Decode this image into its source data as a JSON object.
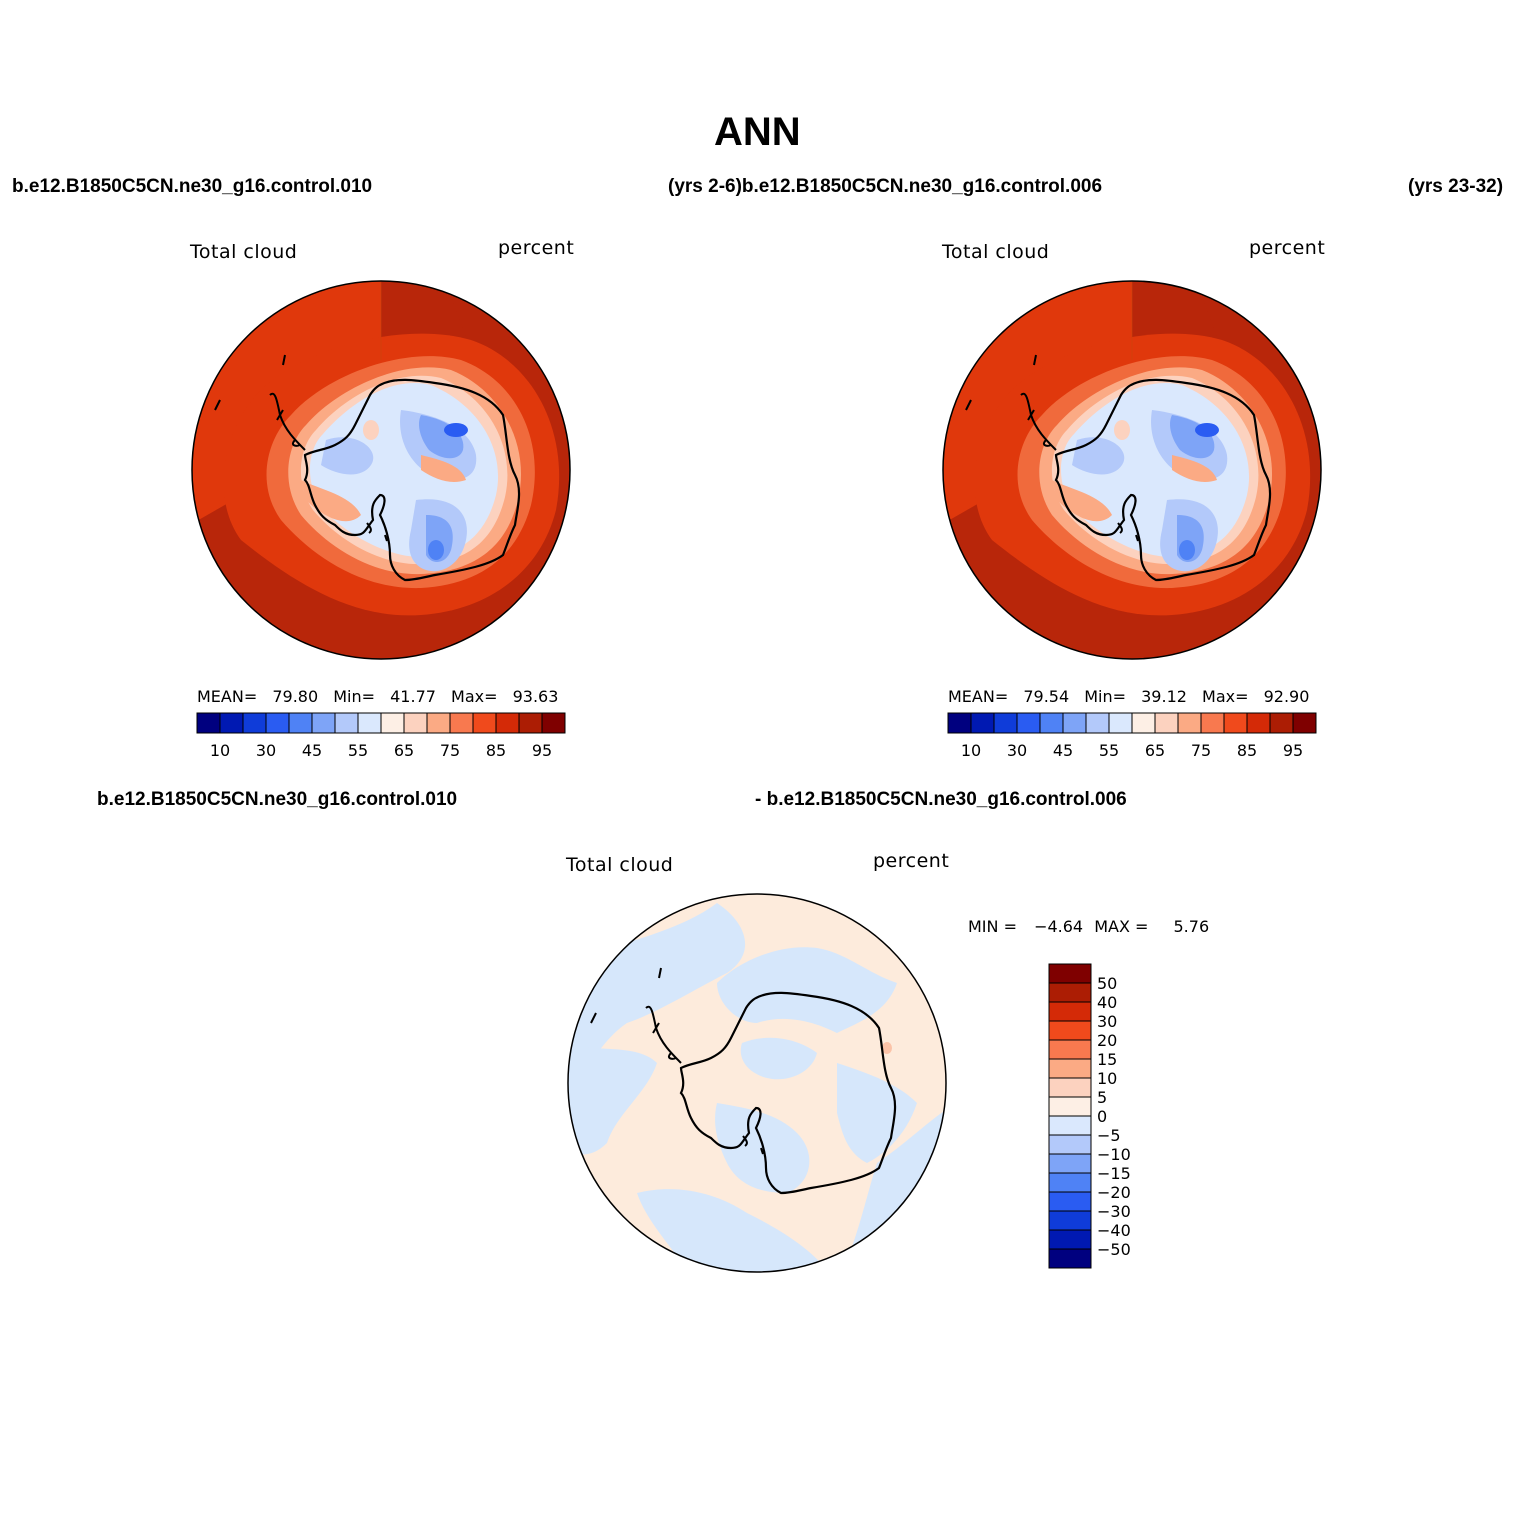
{
  "title": "ANN",
  "top_left": {
    "case_left": "b.e12.B1850C5CN.ne30_g16.control.010",
    "field": "Total cloud",
    "units": "percent",
    "stats": {
      "mean_label": "MEAN=",
      "mean": "79.80",
      "min_label": "Min=",
      "min": "41.77",
      "max_label": "Max=",
      "max": "93.63"
    }
  },
  "top_middle_caption": "(yrs 2-6)b.e12.B1850C5CN.ne30_g16.control.006",
  "top_right": {
    "years_right": "(yrs 23-32)",
    "field": "Total cloud",
    "units": "percent",
    "stats": {
      "mean_label": "MEAN=",
      "mean": "79.54",
      "min_label": "Min=",
      "min": "39.12",
      "max_label": "Max=",
      "max": "92.90"
    }
  },
  "bottom": {
    "case_left": "b.e12.B1850C5CN.ne30_g16.control.010",
    "case_right": "- b.e12.B1850C5CN.ne30_g16.control.006",
    "field": "Total cloud",
    "units": "percent",
    "stats": {
      "min_label": "MIN =",
      "min": "−4.64",
      "max_label": "MAX =",
      "max": "5.76"
    }
  },
  "colorbar_levels": {
    "ticks": [
      "10",
      "30",
      "45",
      "55",
      "65",
      "75",
      "85",
      "95"
    ],
    "colors": [
      "#00007f",
      "#0019b2",
      "#0f3cd9",
      "#2a5cf2",
      "#4f82f5",
      "#7ea4f7",
      "#b3c9fa",
      "#dae8fd",
      "#fdefe5",
      "#fcd2bf",
      "#fbaa84",
      "#f8794f",
      "#f04a1c",
      "#d42a07",
      "#ac1d04",
      "#7f0000"
    ]
  },
  "diff_colorbar": {
    "ticks": [
      "50",
      "40",
      "30",
      "20",
      "15",
      "10",
      "5",
      "0",
      "−5",
      "−10",
      "−15",
      "−20",
      "−30",
      "−40",
      "−50"
    ],
    "colors": [
      "#7f0000",
      "#ac1d04",
      "#d42a07",
      "#f04a1c",
      "#f8794f",
      "#fbaa84",
      "#fcd2bf",
      "#fdefe5",
      "#dae8fd",
      "#b3c9fa",
      "#7ea4f7",
      "#4f82f5",
      "#2a5cf2",
      "#0f3cd9",
      "#0019b2",
      "#00007f"
    ]
  },
  "colors": {
    "ocean_high": "#b8260a",
    "ocean_mid": "#e0380c",
    "coast": "#f06a3c",
    "shelf": "#fbaa84",
    "ice": "#dae8fd",
    "ice_low": "#7ea4f7",
    "ice_lower": "#4f82f5",
    "diff_pos": "#fdebdc",
    "diff_neg": "#d6e7fb"
  }
}
